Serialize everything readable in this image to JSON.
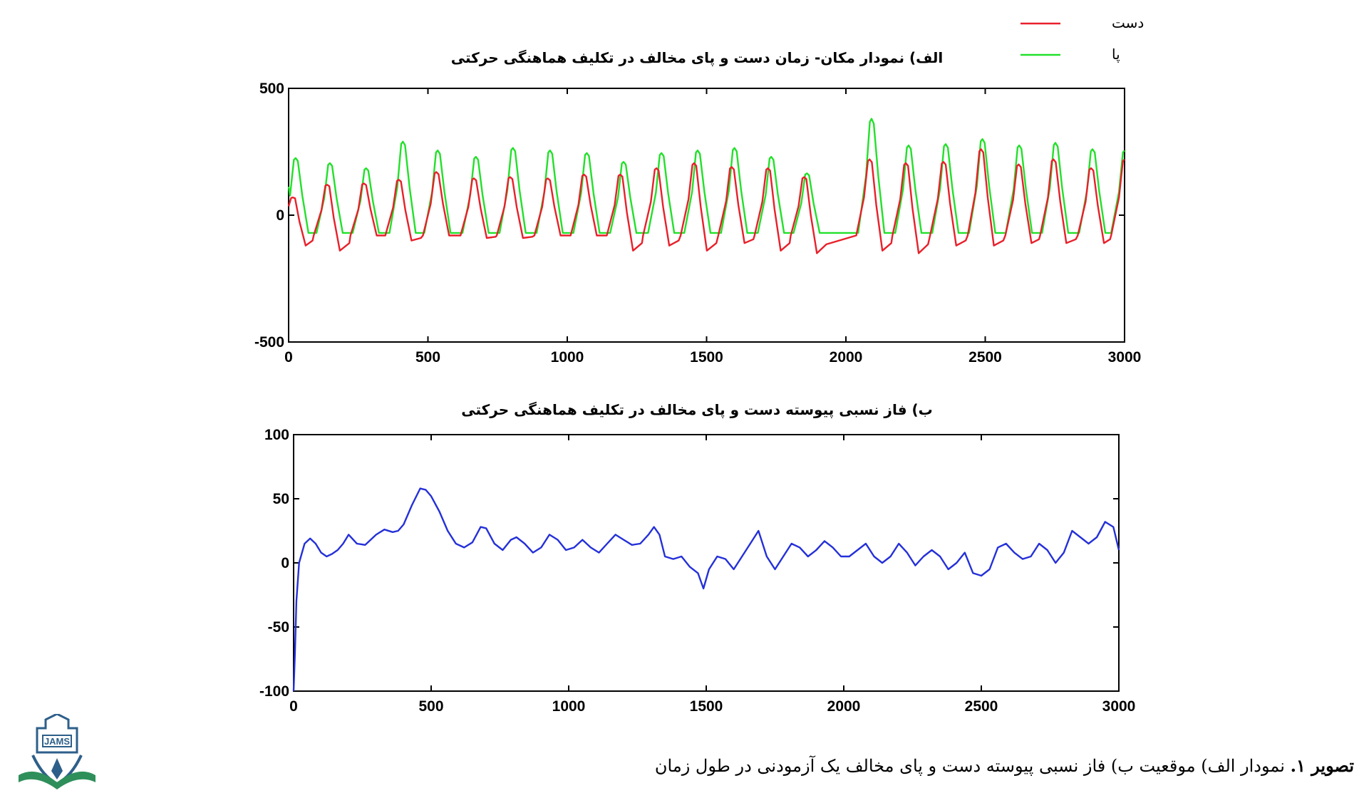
{
  "caption": {
    "bold": "تصویر ۱.",
    "text": " نمودار الف) موقعیت ب) فاز نسبی پیوسته دست و پای مخالف یک آزمودنی در طول زمان"
  },
  "logo": {
    "text": "JAMS"
  },
  "chart_data": [
    {
      "type": "line",
      "title": "الف) نمودار مکان- زمان دست و پای مخالف در تکلیف هماهنگی حرکتی",
      "xlabel": "",
      "ylabel": "",
      "xlim": [
        0,
        3000
      ],
      "ylim": [
        -500,
        500
      ],
      "xticks": [
        "0",
        "500",
        "1000",
        "1500",
        "2000",
        "2500",
        "3000"
      ],
      "yticks": [
        "500",
        "0",
        "-500"
      ],
      "legend": {
        "position": "top-right"
      },
      "series": [
        {
          "name": "دست",
          "color": "#e8202a",
          "kind": "oscillation",
          "baseline": -80,
          "peaks": [
            {
              "x": 15,
              "y": 70,
              "trough": -120
            },
            {
              "x": 138,
              "y": 120,
              "trough": -140
            },
            {
              "x": 270,
              "y": 125,
              "trough": -80
            },
            {
              "x": 395,
              "y": 140,
              "trough": -100
            },
            {
              "x": 530,
              "y": 170,
              "trough": -80
            },
            {
              "x": 665,
              "y": 145,
              "trough": -90
            },
            {
              "x": 795,
              "y": 150,
              "trough": -90
            },
            {
              "x": 930,
              "y": 145,
              "trough": -80
            },
            {
              "x": 1060,
              "y": 160,
              "trough": -80
            },
            {
              "x": 1190,
              "y": 160,
              "trough": -140
            },
            {
              "x": 1320,
              "y": 185,
              "trough": -120
            },
            {
              "x": 1455,
              "y": 205,
              "trough": -140
            },
            {
              "x": 1590,
              "y": 190,
              "trough": -110
            },
            {
              "x": 1720,
              "y": 185,
              "trough": -140
            },
            {
              "x": 1850,
              "y": 150,
              "trough": -150
            },
            {
              "x": 2085,
              "y": 220,
              "trough": -140
            },
            {
              "x": 2215,
              "y": 205,
              "trough": -150
            },
            {
              "x": 2350,
              "y": 210,
              "trough": -120
            },
            {
              "x": 2485,
              "y": 260,
              "trough": -120
            },
            {
              "x": 2620,
              "y": 200,
              "trough": -110
            },
            {
              "x": 2745,
              "y": 220,
              "trough": -110
            },
            {
              "x": 2880,
              "y": 185,
              "trough": -110
            },
            {
              "x": 3000,
              "y": 220,
              "trough": -100
            }
          ]
        },
        {
          "name": "پا",
          "color": "#22e02a",
          "kind": "oscillation",
          "baseline": -70,
          "peaks": [
            {
              "x": 25,
              "y": 225
            },
            {
              "x": 148,
              "y": 205
            },
            {
              "x": 278,
              "y": 185
            },
            {
              "x": 410,
              "y": 290
            },
            {
              "x": 535,
              "y": 255
            },
            {
              "x": 672,
              "y": 230
            },
            {
              "x": 805,
              "y": 265
            },
            {
              "x": 938,
              "y": 255
            },
            {
              "x": 1070,
              "y": 245
            },
            {
              "x": 1202,
              "y": 210
            },
            {
              "x": 1338,
              "y": 245
            },
            {
              "x": 1468,
              "y": 255
            },
            {
              "x": 1600,
              "y": 265
            },
            {
              "x": 1732,
              "y": 230
            },
            {
              "x": 1860,
              "y": 165
            },
            {
              "x": 2092,
              "y": 380
            },
            {
              "x": 2225,
              "y": 275
            },
            {
              "x": 2358,
              "y": 280
            },
            {
              "x": 2490,
              "y": 300
            },
            {
              "x": 2622,
              "y": 275
            },
            {
              "x": 2752,
              "y": 285
            },
            {
              "x": 2885,
              "y": 260
            },
            {
              "x": 3000,
              "y": 255
            }
          ]
        }
      ]
    },
    {
      "type": "line",
      "title": "ب) فاز نسبی پیوسته دست و پای مخالف در تکلیف هماهنگی حرکتی",
      "xlabel": "",
      "ylabel": "",
      "xlim": [
        0,
        3000
      ],
      "ylim": [
        -100,
        100
      ],
      "xticks": [
        "0",
        "500",
        "1000",
        "1500",
        "2000",
        "2500",
        "3000"
      ],
      "yticks": [
        "100",
        "50",
        "0",
        "-50",
        "-100"
      ],
      "series": [
        {
          "color": "#2430d8",
          "x": [
            0,
            5,
            10,
            20,
            40,
            60,
            80,
            100,
            120,
            140,
            160,
            180,
            200,
            230,
            260,
            300,
            330,
            360,
            380,
            400,
            430,
            460,
            480,
            500,
            530,
            560,
            590,
            620,
            650,
            680,
            700,
            730,
            760,
            790,
            810,
            840,
            870,
            900,
            930,
            960,
            990,
            1020,
            1050,
            1080,
            1110,
            1140,
            1170,
            1200,
            1230,
            1260,
            1290,
            1310,
            1330,
            1350,
            1380,
            1410,
            1440,
            1470,
            1490,
            1510,
            1540,
            1570,
            1600,
            1630,
            1660,
            1690,
            1720,
            1750,
            1780,
            1810,
            1840,
            1870,
            1900,
            1930,
            1960,
            1990,
            2020,
            2050,
            2080,
            2110,
            2140,
            2170,
            2200,
            2230,
            2260,
            2290,
            2320,
            2350,
            2380,
            2410,
            2440,
            2470,
            2500,
            2530,
            2560,
            2590,
            2620,
            2650,
            2680,
            2710,
            2740,
            2770,
            2800,
            2830,
            2860,
            2890,
            2920,
            2950,
            2980,
            3000
          ],
          "y": [
            -100,
            -70,
            -30,
            0,
            15,
            19,
            15,
            8,
            5,
            7,
            10,
            15,
            22,
            15,
            14,
            22,
            26,
            24,
            25,
            30,
            45,
            58,
            57,
            52,
            40,
            25,
            15,
            12,
            16,
            28,
            27,
            15,
            10,
            18,
            20,
            15,
            8,
            12,
            22,
            18,
            10,
            12,
            18,
            12,
            8,
            15,
            22,
            18,
            14,
            15,
            22,
            28,
            22,
            5,
            3,
            5,
            -3,
            -8,
            -20,
            -5,
            5,
            3,
            -5,
            5,
            15,
            25,
            5,
            -5,
            5,
            15,
            12,
            5,
            10,
            17,
            12,
            5,
            5,
            10,
            15,
            5,
            0,
            5,
            15,
            8,
            -2,
            5,
            10,
            5,
            -5,
            0,
            8,
            -8,
            -10,
            -5,
            12,
            15,
            8,
            3,
            5,
            15,
            10,
            0,
            8,
            25,
            20,
            15,
            20,
            32,
            28,
            10
          ]
        }
      ]
    }
  ]
}
